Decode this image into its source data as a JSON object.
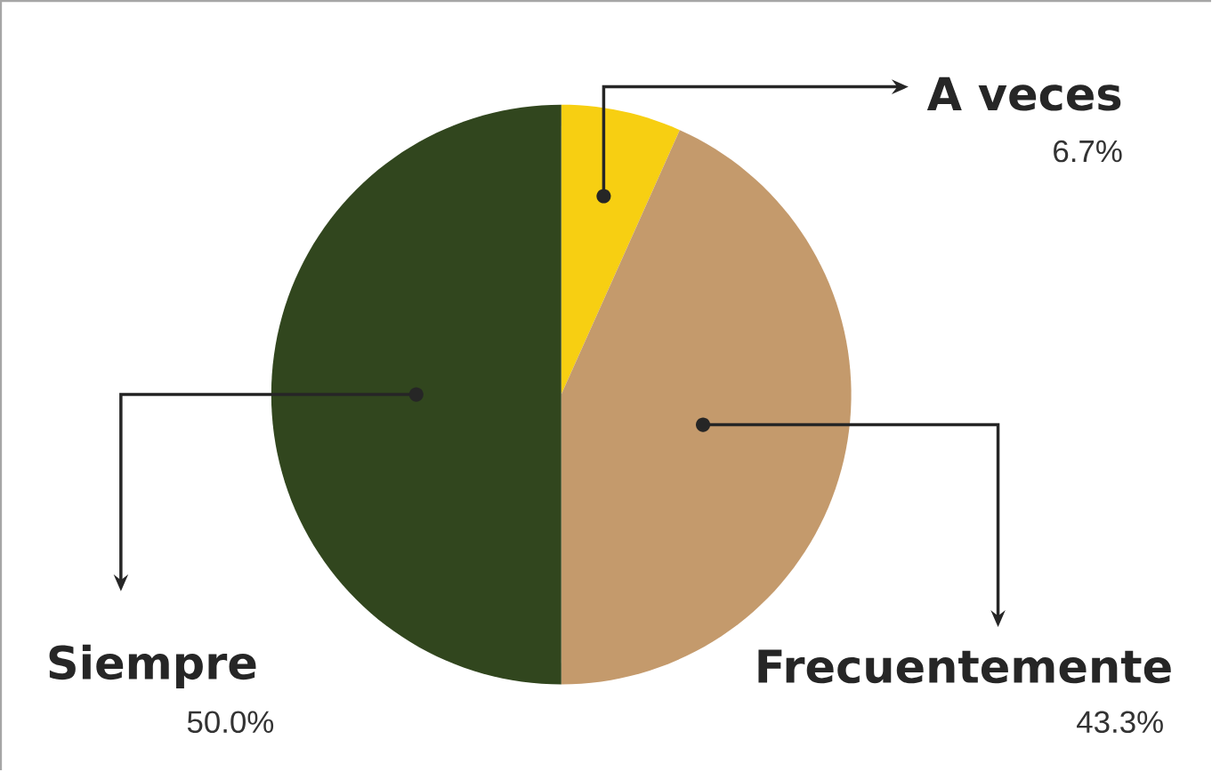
{
  "chart_data": {
    "type": "pie",
    "categories": [
      "A veces",
      "Frecuentemente",
      "Siempre"
    ],
    "values": [
      6.7,
      43.3,
      50.0
    ],
    "colors": [
      "#f7cf12",
      "#c49a6c",
      "#31461e"
    ],
    "value_labels": [
      "6.7%",
      "43.3%",
      "50.0%"
    ]
  }
}
